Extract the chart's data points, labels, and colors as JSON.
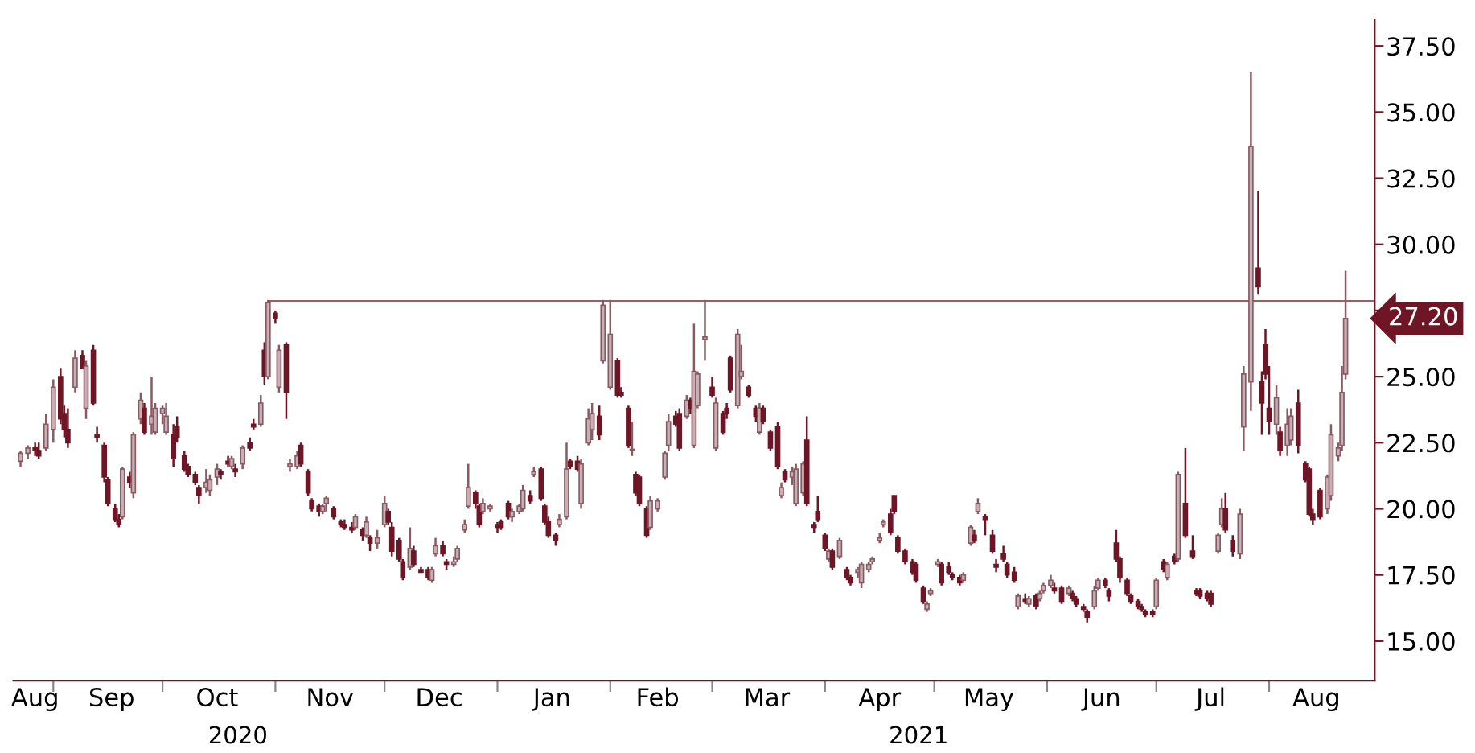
{
  "chart_data": {
    "type": "candlestick",
    "x": [
      "2020-08-23",
      "2020-08-25",
      "2020-08-27",
      "2020-08-28",
      "2020-08-30",
      "2020-09-01",
      "2020-09-03",
      "2020-09-04",
      "2020-09-05",
      "2020-09-07",
      "2020-09-09",
      "2020-09-10",
      "2020-09-12",
      "2020-09-13",
      "2020-09-15",
      "2020-09-16",
      "2020-09-18",
      "2020-09-19",
      "2020-09-20",
      "2020-09-22",
      "2020-09-23",
      "2020-09-25",
      "2020-09-26",
      "2020-09-28",
      "2020-09-29",
      "2020-10-01",
      "2020-10-02",
      "2020-10-04",
      "2020-10-05",
      "2020-10-07",
      "2020-10-08",
      "2020-10-10",
      "2020-10-11",
      "2020-10-13",
      "2020-10-14",
      "2020-10-16",
      "2020-10-17",
      "2020-10-19",
      "2020-10-20",
      "2020-10-21",
      "2020-10-23",
      "2020-10-25",
      "2020-10-26",
      "2020-10-28",
      "2020-10-29",
      "2020-10-30",
      "2020-11-01",
      "2020-11-02",
      "2020-11-04",
      "2020-11-05",
      "2020-11-07",
      "2020-11-08",
      "2020-11-10",
      "2020-11-11",
      "2020-11-13",
      "2020-11-14",
      "2020-11-15",
      "2020-11-17",
      "2020-11-19",
      "2020-11-20",
      "2020-11-22",
      "2020-11-23",
      "2020-11-25",
      "2020-11-26",
      "2020-11-27",
      "2020-11-29",
      "2020-12-01",
      "2020-12-02",
      "2020-12-03",
      "2020-12-05",
      "2020-12-06",
      "2020-12-08",
      "2020-12-09",
      "2020-12-11",
      "2020-12-13",
      "2020-12-14",
      "2020-12-15",
      "2020-12-17",
      "2020-12-18",
      "2020-12-20",
      "2020-12-21",
      "2020-12-23",
      "2020-12-24",
      "2020-12-26",
      "2020-12-27",
      "2020-12-28",
      "2020-12-30",
      "2021-01-01",
      "2021-01-02",
      "2021-01-04",
      "2021-01-05",
      "2021-01-07",
      "2021-01-08",
      "2021-01-10",
      "2021-01-11",
      "2021-01-13",
      "2021-01-14",
      "2021-01-15",
      "2021-01-17",
      "2021-01-18",
      "2021-01-20",
      "2021-01-21",
      "2021-01-23",
      "2021-01-24",
      "2021-01-26",
      "2021-01-27",
      "2021-01-29",
      "2021-01-30",
      "2021-02-01",
      "2021-02-03",
      "2021-02-04",
      "2021-02-06",
      "2021-02-07",
      "2021-02-08",
      "2021-02-09",
      "2021-02-11",
      "2021-02-12",
      "2021-02-14",
      "2021-02-16",
      "2021-02-17",
      "2021-02-19",
      "2021-02-20",
      "2021-02-22",
      "2021-02-23",
      "2021-02-24",
      "2021-02-25",
      "2021-02-27",
      "2021-03-01",
      "2021-03-02",
      "2021-03-04",
      "2021-03-05",
      "2021-03-06",
      "2021-03-08",
      "2021-03-09",
      "2021-03-11",
      "2021-03-13",
      "2021-03-14",
      "2021-03-15",
      "2021-03-17",
      "2021-03-19",
      "2021-03-20",
      "2021-03-21",
      "2021-03-23",
      "2021-03-24",
      "2021-03-26",
      "2021-03-27",
      "2021-03-29",
      "2021-03-30",
      "2021-04-01",
      "2021-04-02",
      "2021-04-03",
      "2021-04-05",
      "2021-04-07",
      "2021-04-08",
      "2021-04-10",
      "2021-04-11",
      "2021-04-13",
      "2021-04-14",
      "2021-04-16",
      "2021-04-17",
      "2021-04-19",
      "2021-04-20",
      "2021-04-21",
      "2021-04-23",
      "2021-04-25",
      "2021-04-26",
      "2021-04-28",
      "2021-04-29",
      "2021-04-30",
      "2021-05-02",
      "2021-05-03",
      "2021-05-05",
      "2021-05-06",
      "2021-05-08",
      "2021-05-09",
      "2021-05-11",
      "2021-05-12",
      "2021-05-13",
      "2021-05-15",
      "2021-05-17",
      "2021-05-18",
      "2021-05-20",
      "2021-05-21",
      "2021-05-23",
      "2021-05-24",
      "2021-05-26",
      "2021-05-27",
      "2021-05-29",
      "2021-05-30",
      "2021-05-31",
      "2021-06-02",
      "2021-06-03",
      "2021-06-05",
      "2021-06-07",
      "2021-06-08",
      "2021-06-09",
      "2021-06-11",
      "2021-06-12",
      "2021-06-14",
      "2021-06-15",
      "2021-06-17",
      "2021-06-18",
      "2021-06-20",
      "2021-06-21",
      "2021-06-23",
      "2021-06-24",
      "2021-06-26",
      "2021-06-27",
      "2021-06-28",
      "2021-06-30",
      "2021-07-01",
      "2021-07-03",
      "2021-07-04",
      "2021-07-06",
      "2021-07-07",
      "2021-07-09",
      "2021-07-11",
      "2021-07-12",
      "2021-07-13",
      "2021-07-15",
      "2021-07-16",
      "2021-07-18",
      "2021-07-19",
      "2021-07-20",
      "2021-07-22",
      "2021-07-24",
      "2021-07-25",
      "2021-07-27",
      "2021-07-29",
      "2021-07-30",
      "2021-07-31",
      "2021-08-01",
      "2021-08-03",
      "2021-08-04",
      "2021-08-06",
      "2021-08-07",
      "2021-08-09",
      "2021-08-11",
      "2021-08-12",
      "2021-08-13",
      "2021-08-15",
      "2021-08-17",
      "2021-08-18",
      "2021-08-20",
      "2021-08-21",
      "2021-08-22"
    ],
    "ohlc": [
      [
        21.8,
        22.2,
        21.6,
        22.1
      ],
      [
        22.1,
        22.4,
        21.9,
        22.3
      ],
      [
        22.3,
        22.5,
        22.0,
        22.2
      ],
      [
        22.2,
        22.5,
        21.9,
        22.0
      ],
      [
        22.3,
        23.6,
        22.2,
        23.2
      ],
      [
        23.0,
        24.9,
        22.5,
        24.6
      ],
      [
        25.0,
        25.3,
        23.2,
        23.4
      ],
      [
        23.6,
        23.9,
        22.7,
        23.0
      ],
      [
        23.0,
        23.8,
        22.3,
        22.5
      ],
      [
        24.6,
        26.0,
        24.4,
        25.7
      ],
      [
        25.8,
        26.0,
        25.3,
        25.3
      ],
      [
        23.8,
        25.6,
        23.4,
        25.4
      ],
      [
        26.0,
        26.2,
        23.9,
        24.0
      ],
      [
        22.8,
        23.1,
        22.5,
        22.7
      ],
      [
        22.4,
        22.5,
        21.0,
        21.2
      ],
      [
        21.1,
        21.2,
        20.1,
        20.2
      ],
      [
        20.0,
        20.2,
        19.5,
        19.6
      ],
      [
        19.6,
        19.8,
        19.3,
        19.4
      ],
      [
        19.7,
        21.6,
        19.6,
        21.5
      ],
      [
        21.2,
        21.4,
        20.8,
        21.0
      ],
      [
        20.6,
        22.9,
        20.4,
        22.8
      ],
      [
        23.4,
        24.4,
        23.2,
        24.1
      ],
      [
        23.8,
        24.0,
        22.8,
        22.9
      ],
      [
        23.2,
        25.0,
        22.8,
        23.5
      ],
      [
        22.9,
        24.0,
        22.8,
        23.8
      ],
      [
        23.6,
        23.9,
        23.2,
        23.8
      ],
      [
        22.9,
        24.0,
        22.8,
        23.5
      ],
      [
        22.8,
        23.2,
        21.6,
        21.9
      ],
      [
        23.1,
        23.5,
        22.5,
        22.7
      ],
      [
        22.0,
        22.2,
        21.4,
        21.5
      ],
      [
        21.6,
        21.7,
        21.2,
        21.3
      ],
      [
        21.3,
        21.4,
        20.9,
        21.0
      ],
      [
        20.8,
        20.9,
        20.2,
        20.5
      ],
      [
        20.8,
        21.5,
        20.6,
        21.0
      ],
      [
        20.7,
        21.3,
        20.5,
        21.1
      ],
      [
        21.2,
        21.7,
        20.9,
        21.5
      ],
      [
        21.4,
        21.5,
        21.1,
        21.3
      ],
      [
        21.8,
        22.0,
        21.6,
        21.7
      ],
      [
        21.6,
        22.0,
        21.5,
        21.9
      ],
      [
        21.5,
        21.7,
        21.2,
        21.4
      ],
      [
        21.7,
        22.4,
        21.5,
        22.3
      ],
      [
        22.5,
        22.7,
        22.2,
        22.3
      ],
      [
        23.2,
        23.4,
        23.0,
        23.1
      ],
      [
        23.2,
        24.3,
        23.1,
        24.0
      ],
      [
        26.0,
        26.3,
        24.7,
        25.0
      ],
      [
        25.0,
        27.9,
        24.9,
        27.8
      ],
      [
        27.4,
        27.5,
        27.0,
        27.2
      ],
      [
        24.6,
        26.2,
        24.4,
        26.0
      ],
      [
        26.2,
        26.3,
        23.4,
        24.4
      ],
      [
        21.6,
        21.9,
        21.4,
        21.7
      ],
      [
        21.6,
        22.2,
        21.5,
        22.0
      ],
      [
        22.4,
        22.5,
        21.6,
        21.7
      ],
      [
        21.4,
        21.5,
        20.5,
        20.6
      ],
      [
        20.3,
        20.4,
        19.9,
        20.0
      ],
      [
        20.1,
        20.2,
        19.7,
        19.9
      ],
      [
        19.9,
        20.2,
        19.8,
        20.1
      ],
      [
        20.2,
        20.5,
        19.9,
        20.4
      ],
      [
        20.0,
        20.1,
        19.6,
        19.7
      ],
      [
        19.5,
        19.6,
        19.3,
        19.4
      ],
      [
        19.4,
        19.6,
        19.2,
        19.3
      ],
      [
        19.3,
        19.5,
        19.1,
        19.2
      ],
      [
        19.3,
        19.8,
        19.2,
        19.7
      ],
      [
        19.2,
        19.3,
        18.8,
        19.0
      ],
      [
        19.0,
        19.7,
        18.9,
        19.5
      ],
      [
        18.9,
        19.0,
        18.4,
        18.7
      ],
      [
        18.7,
        19.2,
        18.5,
        18.9
      ],
      [
        19.4,
        20.5,
        19.3,
        20.2
      ],
      [
        19.9,
        20.0,
        19.4,
        19.5
      ],
      [
        19.3,
        19.5,
        18.2,
        18.4
      ],
      [
        18.8,
        18.9,
        18.0,
        18.1
      ],
      [
        18.0,
        18.1,
        17.3,
        17.4
      ],
      [
        17.8,
        19.3,
        17.7,
        18.5
      ],
      [
        18.4,
        18.6,
        17.8,
        17.9
      ],
      [
        17.7,
        17.8,
        17.6,
        17.6
      ],
      [
        17.7,
        17.8,
        17.3,
        17.4
      ],
      [
        17.3,
        17.8,
        17.2,
        17.7
      ],
      [
        18.3,
        18.9,
        18.2,
        18.6
      ],
      [
        18.6,
        18.8,
        18.2,
        18.3
      ],
      [
        18.0,
        18.1,
        17.7,
        17.9
      ],
      [
        17.9,
        18.2,
        17.8,
        18.0
      ],
      [
        18.1,
        18.6,
        18.0,
        18.5
      ],
      [
        19.2,
        19.6,
        19.1,
        19.4
      ],
      [
        20.1,
        21.7,
        20.0,
        20.8
      ],
      [
        20.6,
        20.7,
        20.0,
        20.2
      ],
      [
        20.1,
        20.2,
        19.3,
        19.4
      ],
      [
        19.9,
        20.4,
        19.8,
        20.2
      ],
      [
        20.0,
        20.2,
        19.9,
        20.1
      ],
      [
        19.4,
        19.5,
        19.1,
        19.3
      ],
      [
        19.5,
        19.6,
        19.2,
        19.3
      ],
      [
        20.2,
        20.3,
        19.6,
        19.7
      ],
      [
        19.7,
        20.0,
        19.5,
        19.9
      ],
      [
        19.9,
        20.2,
        19.8,
        20.1
      ],
      [
        20.0,
        20.9,
        19.9,
        20.7
      ],
      [
        20.5,
        20.7,
        20.2,
        20.3
      ],
      [
        21.3,
        21.6,
        21.2,
        21.4
      ],
      [
        21.5,
        21.6,
        20.3,
        20.4
      ],
      [
        20.1,
        20.2,
        19.4,
        19.5
      ],
      [
        19.5,
        19.7,
        18.9,
        19.0
      ],
      [
        19.0,
        19.1,
        18.6,
        18.8
      ],
      [
        19.4,
        19.8,
        19.3,
        19.6
      ],
      [
        19.7,
        22.5,
        19.6,
        21.5
      ],
      [
        21.8,
        21.9,
        21.5,
        21.6
      ],
      [
        21.8,
        22.0,
        21.4,
        21.5
      ],
      [
        20.2,
        21.9,
        20.0,
        21.7
      ],
      [
        22.5,
        23.8,
        22.4,
        23.4
      ],
      [
        23.0,
        24.0,
        22.6,
        23.6
      ],
      [
        23.5,
        23.9,
        22.6,
        22.8
      ],
      [
        25.6,
        27.9,
        25.5,
        27.7
      ],
      [
        24.6,
        27.9,
        24.5,
        26.6
      ],
      [
        25.6,
        25.7,
        24.2,
        24.3
      ],
      [
        24.4,
        24.6,
        24.2,
        24.3
      ],
      [
        23.8,
        23.9,
        22.3,
        22.4
      ],
      [
        22.2,
        23.3,
        22.0,
        22.2
      ],
      [
        21.3,
        21.4,
        20.5,
        20.6
      ],
      [
        21.2,
        21.3,
        20.1,
        20.2
      ],
      [
        20.0,
        20.1,
        18.9,
        19.0
      ],
      [
        19.3,
        20.5,
        19.2,
        20.3
      ],
      [
        20.0,
        20.4,
        19.9,
        20.3
      ],
      [
        21.2,
        22.2,
        21.1,
        22.1
      ],
      [
        22.4,
        23.6,
        22.2,
        23.3
      ],
      [
        23.5,
        23.7,
        23.1,
        23.2
      ],
      [
        23.6,
        23.8,
        22.2,
        22.3
      ],
      [
        23.5,
        24.3,
        23.4,
        24.1
      ],
      [
        24.1,
        24.2,
        23.6,
        23.8
      ],
      [
        22.4,
        27.0,
        22.3,
        25.2
      ],
      [
        23.9,
        25.2,
        23.8,
        25.1
      ],
      [
        26.4,
        27.9,
        25.6,
        26.5
      ],
      [
        24.6,
        25.0,
        24.2,
        24.3
      ],
      [
        22.3,
        24.2,
        22.2,
        24.0
      ],
      [
        23.6,
        23.7,
        22.8,
        22.9
      ],
      [
        23.8,
        24.0,
        23.4,
        23.6
      ],
      [
        25.7,
        25.8,
        24.4,
        24.5
      ],
      [
        23.9,
        26.8,
        23.8,
        26.6
      ],
      [
        25.0,
        26.2,
        24.9,
        25.2
      ],
      [
        24.6,
        24.7,
        24.2,
        24.3
      ],
      [
        23.8,
        23.9,
        23.3,
        23.5
      ],
      [
        22.9,
        24.0,
        22.8,
        23.8
      ],
      [
        23.8,
        23.9,
        23.2,
        23.3
      ],
      [
        22.9,
        23.0,
        22.2,
        22.3
      ],
      [
        23.1,
        23.3,
        21.5,
        21.6
      ],
      [
        20.5,
        21.0,
        20.4,
        20.8
      ],
      [
        21.4,
        21.5,
        21.0,
        21.1
      ],
      [
        21.2,
        21.6,
        20.9,
        21.4
      ],
      [
        20.2,
        21.7,
        20.1,
        21.5
      ],
      [
        20.6,
        21.8,
        20.5,
        21.7
      ],
      [
        22.6,
        23.5,
        20.1,
        20.2
      ],
      [
        19.4,
        19.5,
        19.1,
        19.3
      ],
      [
        19.9,
        20.5,
        19.5,
        19.6
      ],
      [
        19.0,
        19.1,
        18.4,
        18.5
      ],
      [
        18.1,
        18.5,
        18.0,
        18.4
      ],
      [
        18.4,
        18.5,
        17.7,
        17.8
      ],
      [
        18.2,
        18.9,
        18.1,
        18.8
      ],
      [
        17.7,
        17.8,
        17.3,
        17.4
      ],
      [
        17.4,
        17.5,
        17.1,
        17.2
      ],
      [
        17.6,
        17.8,
        17.4,
        17.7
      ],
      [
        17.2,
        18.0,
        17.0,
        17.9
      ],
      [
        17.7,
        18.0,
        17.6,
        17.9
      ],
      [
        18.0,
        18.2,
        17.9,
        18.1
      ],
      [
        18.8,
        19.1,
        18.7,
        18.9
      ],
      [
        19.4,
        19.6,
        19.3,
        19.5
      ],
      [
        19.8,
        20.0,
        19.0,
        19.1
      ],
      [
        20.5,
        20.5,
        19.8,
        19.9
      ],
      [
        18.9,
        19.0,
        18.3,
        18.4
      ],
      [
        18.4,
        18.5,
        17.9,
        18.0
      ],
      [
        18.0,
        18.1,
        17.5,
        17.6
      ],
      [
        17.9,
        18.0,
        17.2,
        17.3
      ],
      [
        17.0,
        17.1,
        16.4,
        16.5
      ],
      [
        16.2,
        16.5,
        16.1,
        16.4
      ],
      [
        16.8,
        17.0,
        16.7,
        16.9
      ],
      [
        17.9,
        18.1,
        17.8,
        18.0
      ],
      [
        17.9,
        18.0,
        17.1,
        17.2
      ],
      [
        17.8,
        18.0,
        17.5,
        17.6
      ],
      [
        17.5,
        17.6,
        17.3,
        17.4
      ],
      [
        17.4,
        17.5,
        17.1,
        17.2
      ],
      [
        17.3,
        17.6,
        17.2,
        17.5
      ],
      [
        18.7,
        19.4,
        18.6,
        19.3
      ],
      [
        19.0,
        19.2,
        18.7,
        18.8
      ],
      [
        19.9,
        20.4,
        19.8,
        20.2
      ],
      [
        19.7,
        19.8,
        19.0,
        19.6
      ],
      [
        19.0,
        19.2,
        18.3,
        18.4
      ],
      [
        17.9,
        18.1,
        17.6,
        17.8
      ],
      [
        18.3,
        18.6,
        18.0,
        18.1
      ],
      [
        17.9,
        18.0,
        17.4,
        17.5
      ],
      [
        17.6,
        17.8,
        17.2,
        17.3
      ],
      [
        16.3,
        16.8,
        16.2,
        16.7
      ],
      [
        16.6,
        16.8,
        16.4,
        16.5
      ],
      [
        16.4,
        16.7,
        16.3,
        16.6
      ],
      [
        16.7,
        16.8,
        16.2,
        16.3
      ],
      [
        16.6,
        16.9,
        16.5,
        16.8
      ],
      [
        16.9,
        17.2,
        16.8,
        17.1
      ],
      [
        17.1,
        17.5,
        17.0,
        17.3
      ],
      [
        17.0,
        17.2,
        16.8,
        16.9
      ],
      [
        17.0,
        17.1,
        16.4,
        16.5
      ],
      [
        16.8,
        17.1,
        16.7,
        17.0
      ],
      [
        16.8,
        16.9,
        16.5,
        16.6
      ],
      [
        16.6,
        16.7,
        16.3,
        16.4
      ],
      [
        16.3,
        16.4,
        16.1,
        16.2
      ],
      [
        16.1,
        16.2,
        15.7,
        15.9
      ],
      [
        16.3,
        17.1,
        16.2,
        16.9
      ],
      [
        17.0,
        17.4,
        16.9,
        17.3
      ],
      [
        17.3,
        17.4,
        17.0,
        17.1
      ],
      [
        16.9,
        17.0,
        16.5,
        16.7
      ],
      [
        18.7,
        19.2,
        18.0,
        18.1
      ],
      [
        18.1,
        18.2,
        17.2,
        17.4
      ],
      [
        17.3,
        17.4,
        16.7,
        16.8
      ],
      [
        16.7,
        16.8,
        16.4,
        16.5
      ],
      [
        16.5,
        16.6,
        16.2,
        16.3
      ],
      [
        16.3,
        16.4,
        16.1,
        16.2
      ],
      [
        16.1,
        16.2,
        15.9,
        16.0
      ],
      [
        16.1,
        16.2,
        15.9,
        16.0
      ],
      [
        16.3,
        17.4,
        16.2,
        17.3
      ],
      [
        18.0,
        18.1,
        17.6,
        17.7
      ],
      [
        17.4,
        18.0,
        17.3,
        17.9
      ],
      [
        18.2,
        18.3,
        17.9,
        18.0
      ],
      [
        18.1,
        21.4,
        18.0,
        21.3
      ],
      [
        20.2,
        22.3,
        18.9,
        19.0
      ],
      [
        18.4,
        19.0,
        18.1,
        18.2
      ],
      [
        16.9,
        17.0,
        16.7,
        16.8
      ],
      [
        16.9,
        17.0,
        16.6,
        16.7
      ],
      [
        16.8,
        16.9,
        16.5,
        16.6
      ],
      [
        16.8,
        16.9,
        16.3,
        16.4
      ],
      [
        18.4,
        19.1,
        18.3,
        19.0
      ],
      [
        19.4,
        20.4,
        19.3,
        20.0
      ],
      [
        20.0,
        20.6,
        19.1,
        19.2
      ],
      [
        18.8,
        19.0,
        18.2,
        18.4
      ],
      [
        18.3,
        20.0,
        18.1,
        19.8
      ],
      [
        23.1,
        25.4,
        22.2,
        25.1
      ],
      [
        24.8,
        36.5,
        23.7,
        33.7
      ],
      [
        29.1,
        32.0,
        28.1,
        28.4
      ],
      [
        24.8,
        25.2,
        22.8,
        24.0
      ],
      [
        26.2,
        26.8,
        24.9,
        25.1
      ],
      [
        23.8,
        25.4,
        22.8,
        23.3
      ],
      [
        23.2,
        24.7,
        22.8,
        24.2
      ],
      [
        22.9,
        23.1,
        22.0,
        22.2
      ],
      [
        22.4,
        23.8,
        22.0,
        23.2
      ],
      [
        22.6,
        23.8,
        22.4,
        23.5
      ],
      [
        24.0,
        24.5,
        22.1,
        22.4
      ],
      [
        21.7,
        21.8,
        21.0,
        21.1
      ],
      [
        21.5,
        21.6,
        19.7,
        19.8
      ],
      [
        19.8,
        20.0,
        19.4,
        19.6
      ],
      [
        20.7,
        20.8,
        19.6,
        19.7
      ],
      [
        20.0,
        21.3,
        19.8,
        21.2
      ],
      [
        20.5,
        23.2,
        20.3,
        22.8
      ],
      [
        22.0,
        22.5,
        21.8,
        22.3
      ],
      [
        22.4,
        25.4,
        22.2,
        24.4
      ],
      [
        25.1,
        29.0,
        24.9,
        27.2
      ]
    ],
    "series": [
      {
        "type": "line",
        "x": [
          "2020-10-30",
          "2021-08-30"
        ],
        "values": [
          27.85,
          27.85
        ],
        "color": "#c0504d"
      }
    ],
    "annotations": [
      "27.20",
      "2020",
      "2021"
    ],
    "xlim": [
      "2020-08-21",
      "2021-08-30"
    ],
    "xticks": [
      {
        "value": "2020-09-01",
        "label": null
      },
      {
        "value": "2020-10-01",
        "label": null
      },
      {
        "value": "2020-11-01",
        "label": null
      },
      {
        "value": "2020-12-01",
        "label": null
      },
      {
        "value": "2021-01-01",
        "label": null
      },
      {
        "value": "2021-02-01",
        "label": null
      },
      {
        "value": "2021-03-01",
        "label": null
      },
      {
        "value": "2021-04-01",
        "label": null
      },
      {
        "value": "2021-05-01",
        "label": null
      },
      {
        "value": "2021-06-01",
        "label": null
      },
      {
        "value": "2021-07-01",
        "label": null
      },
      {
        "value": "2021-08-01",
        "label": null
      },
      {
        "value": "2020-08-27",
        "label": "Aug"
      },
      {
        "value": "2020-09-17",
        "label": "Sep"
      },
      {
        "value": "2020-10-16",
        "label": "Oct"
      },
      {
        "value": "2020-11-16",
        "label": "Nov"
      },
      {
        "value": "2020-12-16",
        "label": "Dec"
      },
      {
        "value": "2021-01-16",
        "label": "Jan"
      },
      {
        "value": "2021-02-14",
        "label": "Feb"
      },
      {
        "value": "2021-03-16",
        "label": "Mar"
      },
      {
        "value": "2021-04-16",
        "label": "Apr"
      },
      {
        "value": "2021-05-16",
        "label": "May"
      },
      {
        "value": "2021-06-16",
        "label": "Jun"
      },
      {
        "value": "2021-07-16",
        "label": "Jul"
      },
      {
        "value": "2021-08-14",
        "label": "Aug"
      }
    ],
    "ylim": [
      13.5,
      38.5
    ],
    "yticks": [
      {
        "value": 15,
        "label": "15.00"
      },
      {
        "value": 17.5,
        "label": "17.50"
      },
      {
        "value": 20,
        "label": "20.00"
      },
      {
        "value": 22.5,
        "label": "22.50"
      },
      {
        "value": 25,
        "label": "25.00"
      },
      {
        "value": 27.5,
        "label": null
      },
      {
        "value": 30,
        "label": "30.00"
      },
      {
        "value": 32.5,
        "label": "32.50"
      },
      {
        "value": 35,
        "label": "35.00"
      },
      {
        "value": 37.5,
        "label": "37.50"
      }
    ],
    "grid": false
  }
}
